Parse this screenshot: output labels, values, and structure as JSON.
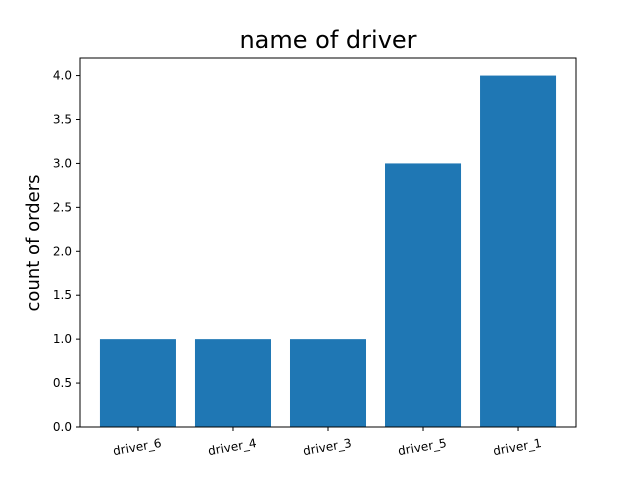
{
  "chart_data": {
    "type": "bar",
    "title": "name of driver",
    "xlabel": "",
    "ylabel": "count of orders",
    "categories": [
      "driver_6",
      "driver_4",
      "driver_3",
      "driver_5",
      "driver_1"
    ],
    "values": [
      1,
      1,
      1,
      3,
      4
    ],
    "ylim": [
      0,
      4.2
    ],
    "yticks": [
      "0.0",
      "0.5",
      "1.0",
      "1.5",
      "2.0",
      "2.5",
      "3.0",
      "3.5",
      "4.0"
    ],
    "grid": false,
    "legend": "none",
    "bar_color": "#1f77b4",
    "x_tick_rotation_deg": -10
  }
}
